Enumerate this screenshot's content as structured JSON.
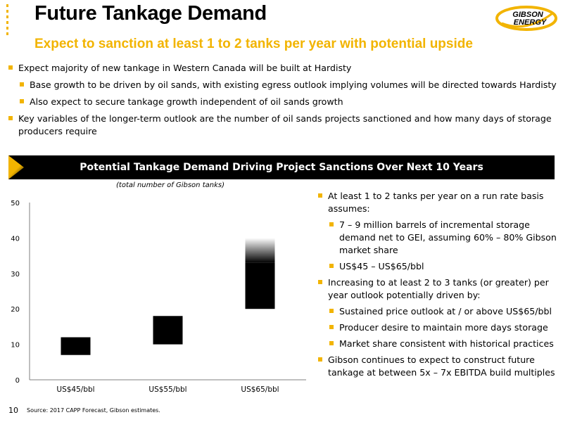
{
  "title": "Future Tankage Demand",
  "subtitle": "Expect to sanction at least 1 to 2 tanks per year with potential upside",
  "logo": {
    "line1": "GIBSON",
    "line2": "ENERGY",
    "brand_color": "#f2b400"
  },
  "bullets": [
    "Expect majority of new tankage in Western Canada will be built at Hardisty",
    "Base growth to be driven by oil sands, with existing egress outlook implying volumes will be directed towards Hardisty",
    "Also expect to secure tankage growth independent of oil sands growth",
    "Key variables of the longer-term outlook are the number of oil sands projects sanctioned and how many days of storage producers require"
  ],
  "banner": "Potential Tankage Demand Driving Project Sanctions Over Next 10 Years",
  "right_bullets": [
    "At least 1 to 2 tanks per year on a run rate basis assumes:",
    "7 – 9 million barrels of incremental storage demand net to GEI, assuming 60% – 80% Gibson market share",
    "US$45 – US$65/bbl",
    "Increasing to at least 2 to 3 tanks (or greater) per year outlook potentially driven by:",
    "Sustained price outlook at / or above US$65/bbl",
    "Producer desire to maintain more days storage",
    "Market share consistent with historical practices",
    "Gibson continues to expect to construct future tankage at between 5x – 7x EBITDA build multiples"
  ],
  "page_number": "10",
  "source": "Source: 2017 CAPP Forecast, Gibson estimates.",
  "chart_data": {
    "type": "bar",
    "note": "(total number of Gibson tanks)",
    "categories": [
      "US$45/bbl",
      "US$55/bbl",
      "US$65/bbl"
    ],
    "ranges": [
      {
        "low": 7,
        "high": 12
      },
      {
        "low": 10,
        "high": 18
      },
      {
        "low": 20,
        "high": 33,
        "upside_high": 40
      }
    ],
    "ylim": [
      0,
      50
    ],
    "yticks": [
      0,
      10,
      20,
      30,
      40,
      50
    ],
    "colors": {
      "bar": "#000000",
      "axis": "#7f7f7f",
      "accent": "#f2b400"
    },
    "grid": false
  }
}
